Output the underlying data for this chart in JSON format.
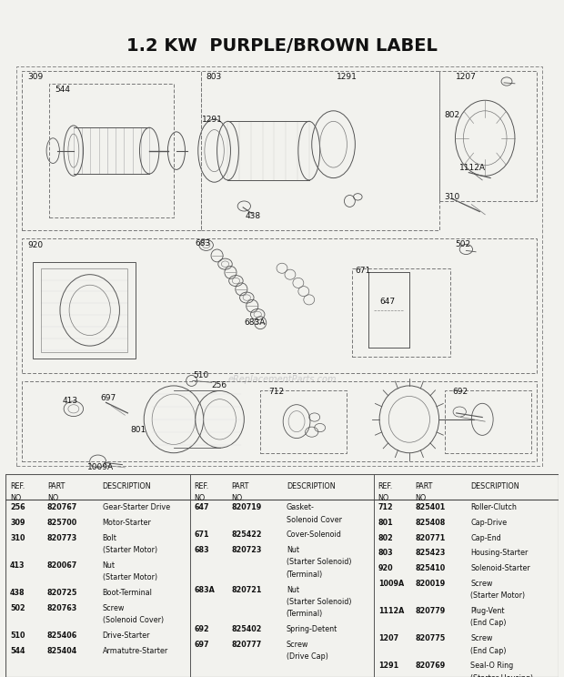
{
  "title": "1.2 KW  PURPLE/BROWN LABEL",
  "bg_color": "#f2f2ee",
  "watermark": "eReplacementParts.com",
  "parts": [
    {
      "ref": "256",
      "part": "820767",
      "desc": "Gear-Starter Drive",
      "bold_ref": true
    },
    {
      "ref": "309",
      "part": "825700",
      "desc": "Motor-Starter",
      "bold_ref": false
    },
    {
      "ref": "310",
      "part": "820773",
      "desc": "Bolt\n(Starter Motor)",
      "bold_ref": false
    },
    {
      "ref": "413",
      "part": "820067",
      "desc": "Nut\n(Starter Motor)",
      "bold_ref": false
    },
    {
      "ref": "438",
      "part": "820725",
      "desc": "Boot-Terminal",
      "bold_ref": false
    },
    {
      "ref": "502",
      "part": "820763",
      "desc": "Screw\n(Solenoid Cover)",
      "bold_ref": false
    },
    {
      "ref": "510",
      "part": "825406",
      "desc": "Drive-Starter",
      "bold_ref": false
    },
    {
      "ref": "544",
      "part": "825404",
      "desc": "Armatutre-Starter",
      "bold_ref": false
    },
    {
      "ref": "647",
      "part": "820719",
      "desc": "Gasket-\nSolenoid Cover",
      "bold_ref": false
    },
    {
      "ref": "671",
      "part": "825422",
      "desc": "Cover-Solenoid",
      "bold_ref": false
    },
    {
      "ref": "683",
      "part": "820723",
      "desc": "Nut\n(Starter Solenoid)\n(Terminal)",
      "bold_ref": false
    },
    {
      "ref": "683A",
      "part": "820721",
      "desc": "Nut\n(Starter Solenoid)\n(Terminal)",
      "bold_ref": true
    },
    {
      "ref": "692",
      "part": "825402",
      "desc": "Spring-Detent",
      "bold_ref": false
    },
    {
      "ref": "697",
      "part": "820777",
      "desc": "Screw\n(Drive Cap)",
      "bold_ref": false
    },
    {
      "ref": "712",
      "part": "825401",
      "desc": "Roller-Clutch",
      "bold_ref": false
    },
    {
      "ref": "801",
      "part": "825408",
      "desc": "Cap-Drive",
      "bold_ref": false
    },
    {
      "ref": "802",
      "part": "820771",
      "desc": "Cap-End",
      "bold_ref": false
    },
    {
      "ref": "803",
      "part": "825423",
      "desc": "Housing-Starter",
      "bold_ref": false
    },
    {
      "ref": "920",
      "part": "825410",
      "desc": "Solenoid-Starter",
      "bold_ref": false
    },
    {
      "ref": "1009A",
      "part": "820019",
      "desc": "Screw\n(Starter Motor)",
      "bold_ref": true
    },
    {
      "ref": "1112A",
      "part": "820779",
      "desc": "Plug-Vent\n(End Cap)",
      "bold_ref": true
    },
    {
      "ref": "1207",
      "part": "820775",
      "desc": "Screw\n(End Cap)",
      "bold_ref": false
    },
    {
      "ref": "1291",
      "part": "820769",
      "desc": "Seal-O Ring\n(Starter Housing)",
      "bold_ref": false
    }
  ],
  "col1_parts": [
    "256",
    "309",
    "310",
    "413",
    "438",
    "502",
    "510",
    "544"
  ],
  "col2_parts": [
    "647",
    "671",
    "683",
    "683A",
    "692",
    "697"
  ],
  "col3_parts": [
    "712",
    "801",
    "802",
    "803",
    "920",
    "1009A",
    "1112A",
    "1207",
    "1291"
  ]
}
